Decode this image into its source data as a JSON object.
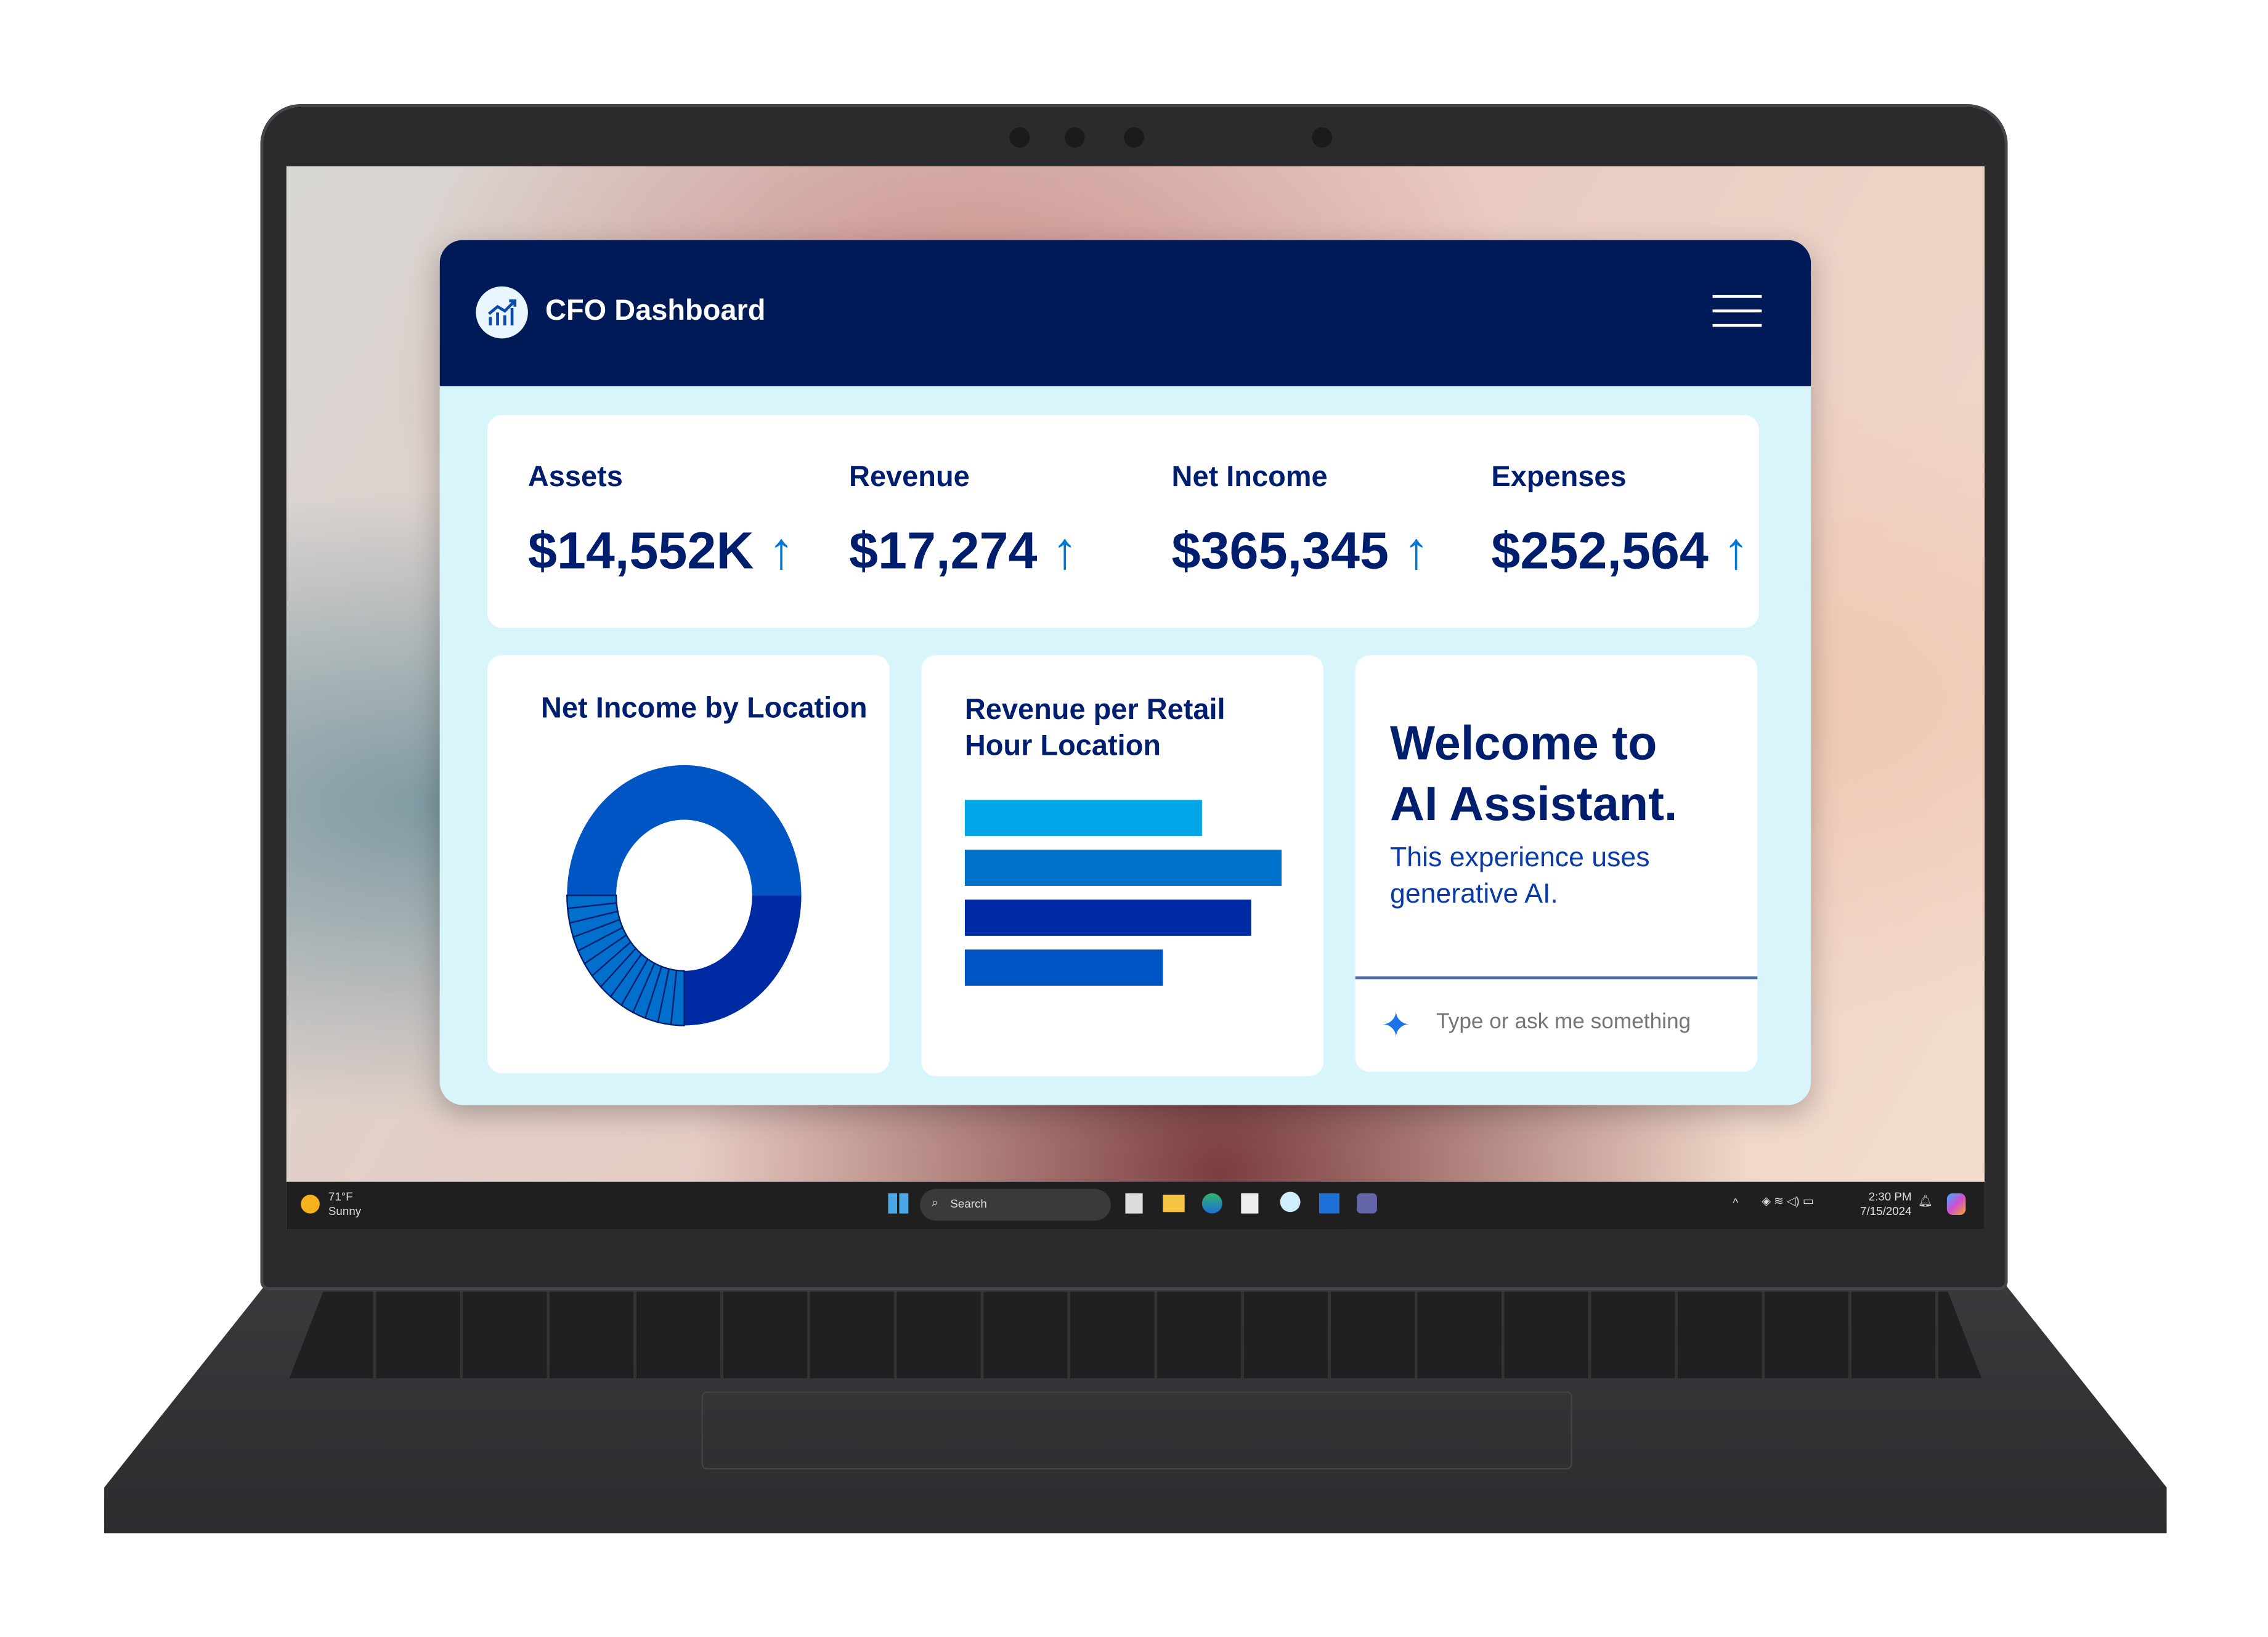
{
  "app": {
    "title": "CFO Dashboard",
    "logo_icon": "chart-growth-icon",
    "menu_icon": "hamburger-menu-icon"
  },
  "kpis": [
    {
      "label": "Assets",
      "value": "$14,552K",
      "trend": "up"
    },
    {
      "label": "Revenue",
      "value": "$17,274",
      "trend": "up"
    },
    {
      "label": "Net Income",
      "value": "$365,345",
      "trend": "up"
    },
    {
      "label": "Expenses",
      "value": "$252,564",
      "trend": "up"
    }
  ],
  "colors": {
    "header": "#001a57",
    "background": "#d9f5fc",
    "text": "#001e6e",
    "arrow": "#0079d6"
  },
  "chart_data": [
    {
      "type": "pie",
      "title": "Net Income by Location",
      "donut": true,
      "values": [
        50,
        25,
        1.8,
        1.8,
        1.8,
        1.8,
        1.8,
        1.8,
        1.8,
        1.8,
        1.8,
        1.8,
        1.8,
        1.8,
        1.8,
        1.6
      ],
      "colors": [
        "#0055c4",
        "#002aa3",
        "#0070cc",
        "#0070cc",
        "#0070cc",
        "#0070cc",
        "#0070cc",
        "#0070cc",
        "#0070cc",
        "#0070cc",
        "#0070cc",
        "#0070cc",
        "#0070cc",
        "#0070cc",
        "#0070cc",
        "#0070cc"
      ]
    },
    {
      "type": "bar",
      "orientation": "horizontal",
      "title_line1": "Revenue per Retail",
      "title_line2": "Hour Location",
      "values": [
        164,
        219,
        198,
        137
      ],
      "colors": [
        "#00a6e8",
        "#0072cc",
        "#002aa3",
        "#0055c4"
      ]
    }
  ],
  "assistant": {
    "title_line1": "Welcome to",
    "title_line2": "AI Assistant.",
    "subtitle": "This experience uses generative AI.",
    "placeholder": "Type or ask me something",
    "icon": "sparkle-icon"
  },
  "taskbar": {
    "weather_temp": "71°F",
    "weather_desc": "Sunny",
    "search": "Search",
    "time": "2:30 PM",
    "date": "7/15/2024"
  }
}
